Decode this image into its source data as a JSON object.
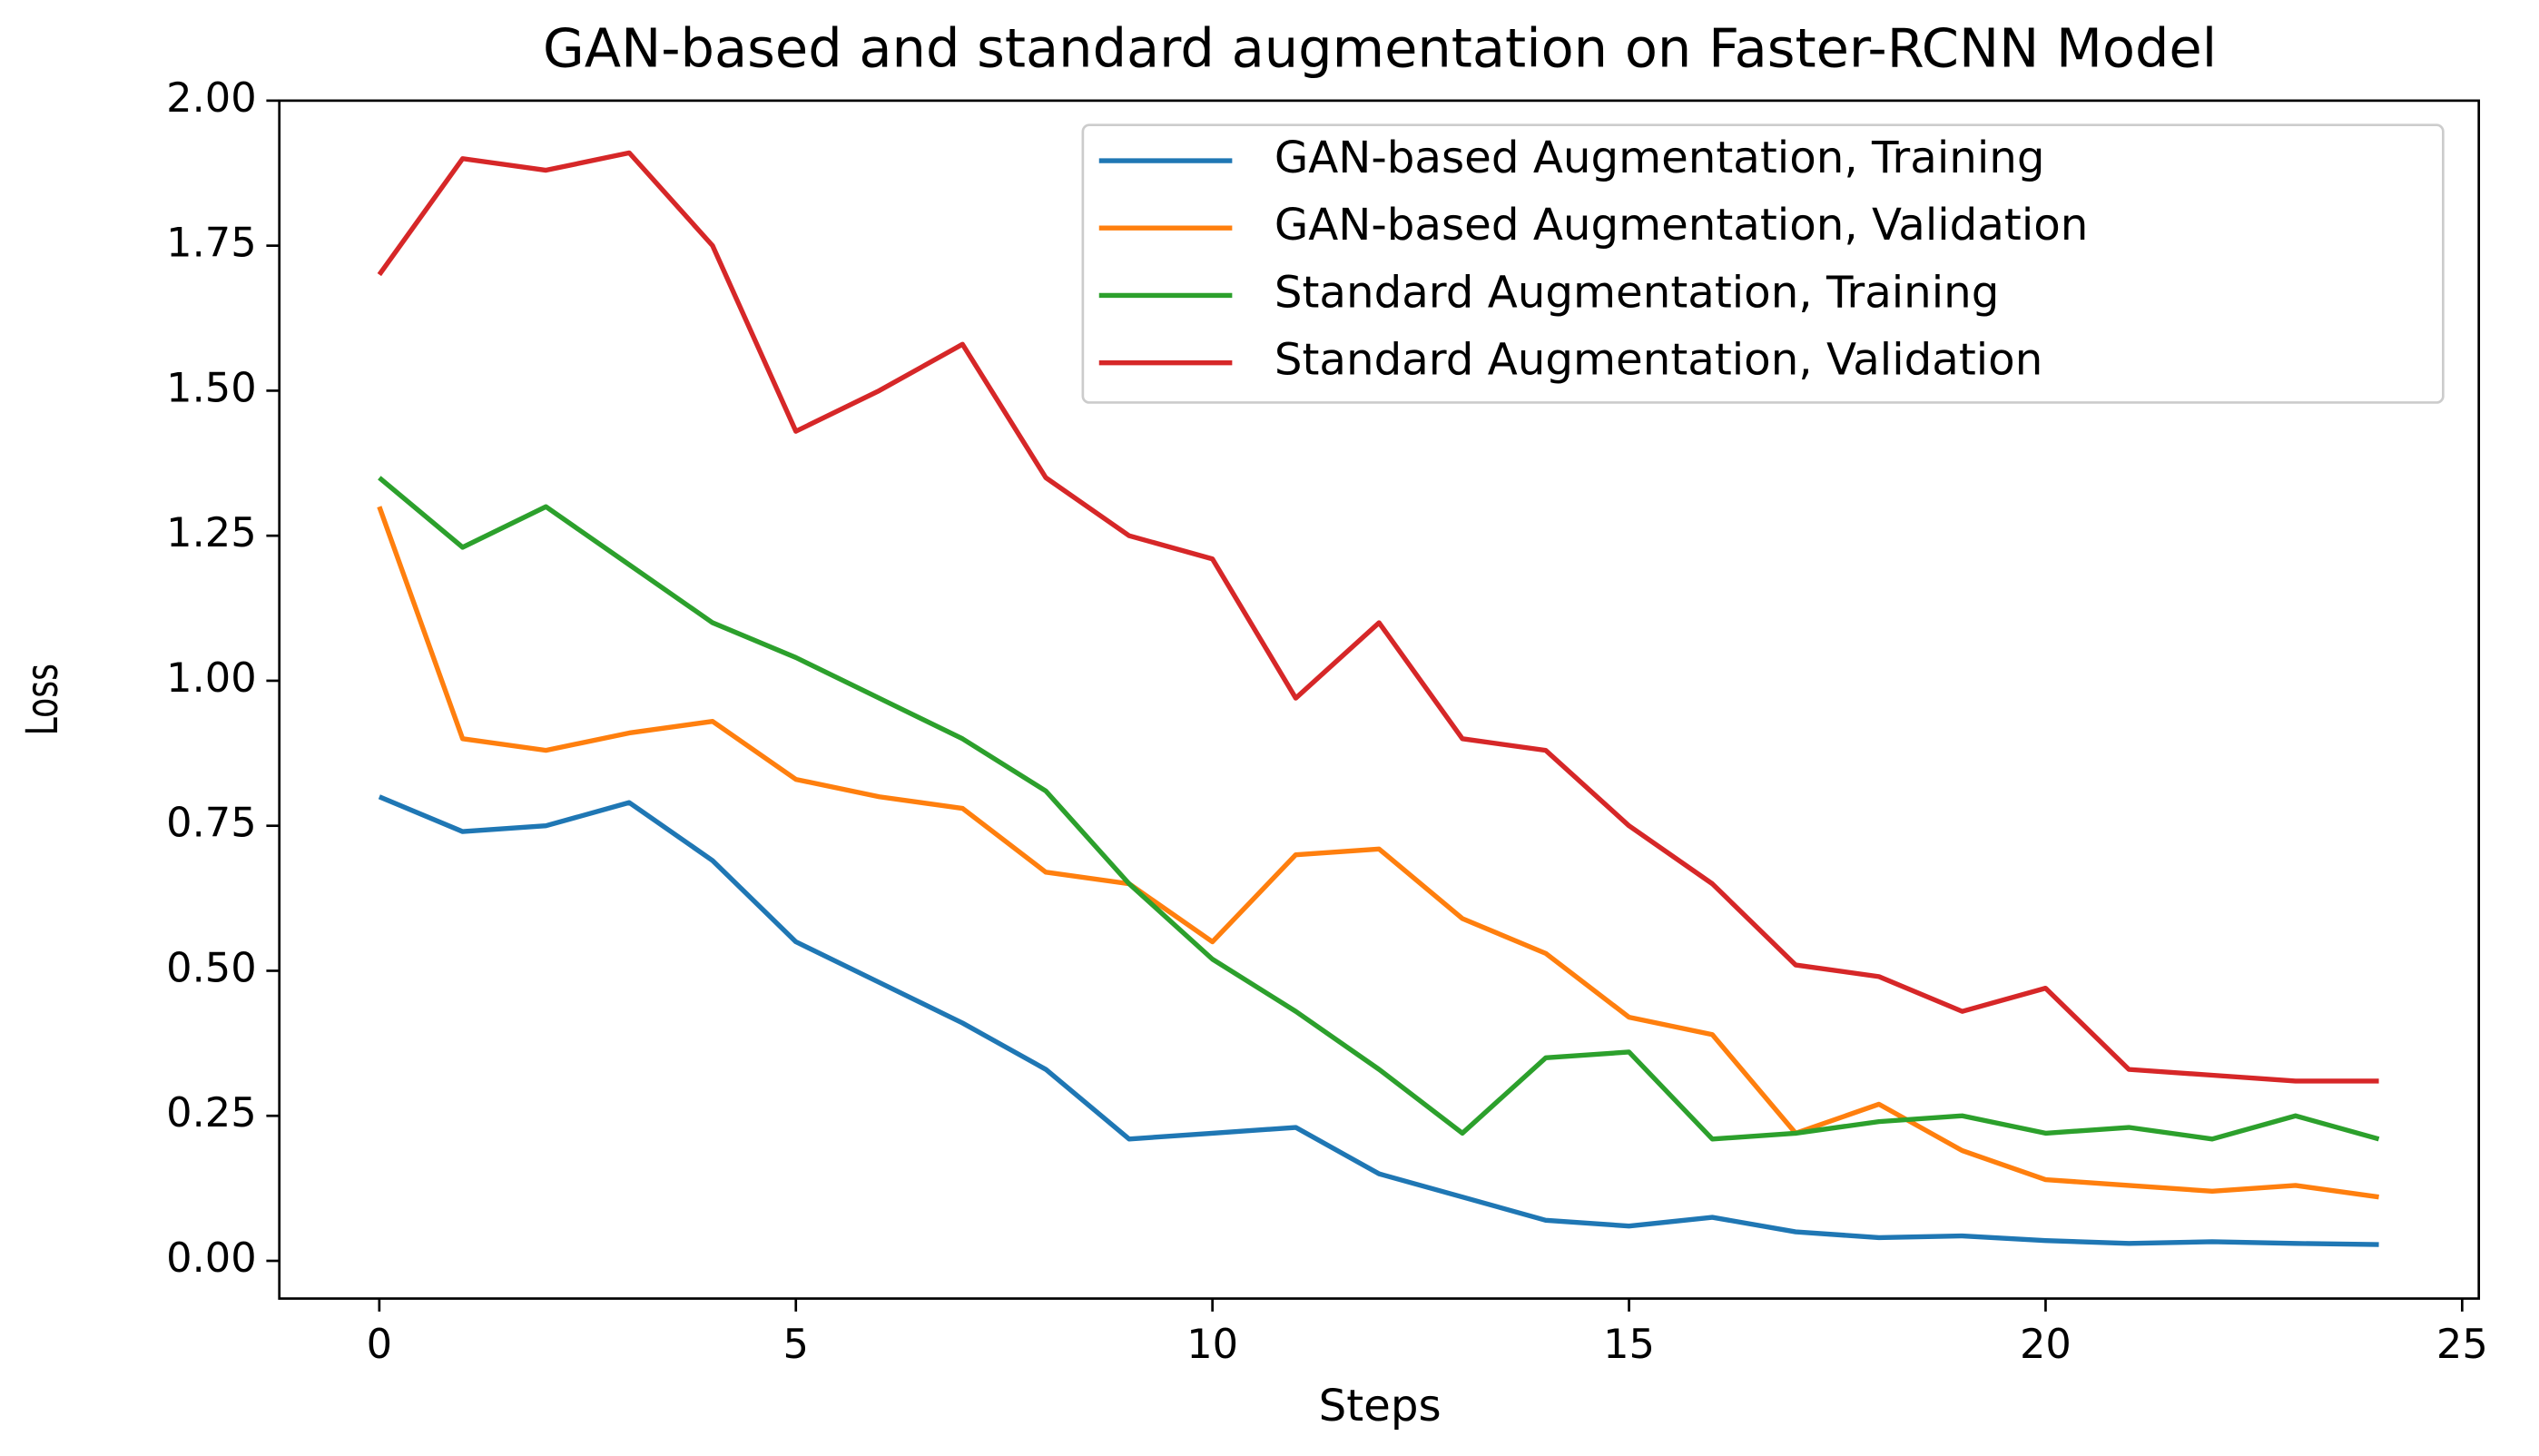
{
  "chart_data": {
    "type": "line",
    "title": "GAN-based and standard augmentation on Faster-RCNN Model",
    "x_label": "Steps",
    "y_label": "Loss",
    "x": [
      0,
      1,
      2,
      3,
      4,
      5,
      6,
      7,
      8,
      9,
      10,
      11,
      12,
      13,
      14,
      15,
      16,
      17,
      18,
      19,
      20,
      21,
      22,
      23,
      24
    ],
    "series": [
      {
        "name": "GAN-based Augmentation, Training",
        "color": "#1f77b4",
        "values": [
          0.8,
          0.74,
          0.75,
          0.79,
          0.69,
          0.55,
          0.48,
          0.41,
          0.33,
          0.21,
          0.22,
          0.23,
          0.15,
          0.11,
          0.07,
          0.06,
          0.075,
          0.05,
          0.04,
          0.043,
          0.035,
          0.03,
          0.033,
          0.03,
          0.028
        ]
      },
      {
        "name": "GAN-based Augmentation, Validation",
        "color": "#ff7f0e",
        "values": [
          1.3,
          0.9,
          0.88,
          0.91,
          0.93,
          0.83,
          0.8,
          0.78,
          0.67,
          0.65,
          0.55,
          0.7,
          0.71,
          0.59,
          0.53,
          0.42,
          0.39,
          0.22,
          0.27,
          0.19,
          0.14,
          0.13,
          0.12,
          0.13,
          0.11
        ]
      },
      {
        "name": "Standard Augmentation, Training",
        "color": "#2ca02c",
        "values": [
          1.35,
          1.23,
          1.3,
          1.2,
          1.1,
          1.04,
          0.97,
          0.9,
          0.81,
          0.65,
          0.52,
          0.43,
          0.33,
          0.22,
          0.35,
          0.36,
          0.21,
          0.22,
          0.24,
          0.25,
          0.22,
          0.23,
          0.21,
          0.25,
          0.21
        ]
      },
      {
        "name": "Standard Augmentation, Validation",
        "color": "#d62728",
        "values": [
          1.7,
          1.9,
          1.88,
          1.91,
          1.75,
          1.43,
          1.5,
          1.58,
          1.35,
          1.25,
          1.21,
          0.97,
          1.1,
          0.9,
          0.88,
          0.75,
          0.65,
          0.51,
          0.49,
          0.43,
          0.47,
          0.33,
          0.32,
          0.31,
          0.31
        ]
      }
    ],
    "xlim": [
      -1.2,
      25.2
    ],
    "xticks": [
      0,
      5,
      10,
      15,
      20,
      25
    ],
    "ylim": [
      -0.065,
      2.0
    ],
    "yticks": [
      {
        "value": 0,
        "label": "0.00"
      },
      {
        "value": 0.25,
        "label": "0.25"
      },
      {
        "value": 0.5,
        "label": "0.50"
      },
      {
        "value": 0.75,
        "label": "0.75"
      },
      {
        "value": 1,
        "label": "1.00"
      },
      {
        "value": 1.25,
        "label": "1.25"
      },
      {
        "value": 1.5,
        "label": "1.50"
      },
      {
        "value": 1.75,
        "label": "1.75"
      },
      {
        "value": 2,
        "label": "2.00"
      }
    ],
    "grid": false,
    "legend": "upper right"
  }
}
